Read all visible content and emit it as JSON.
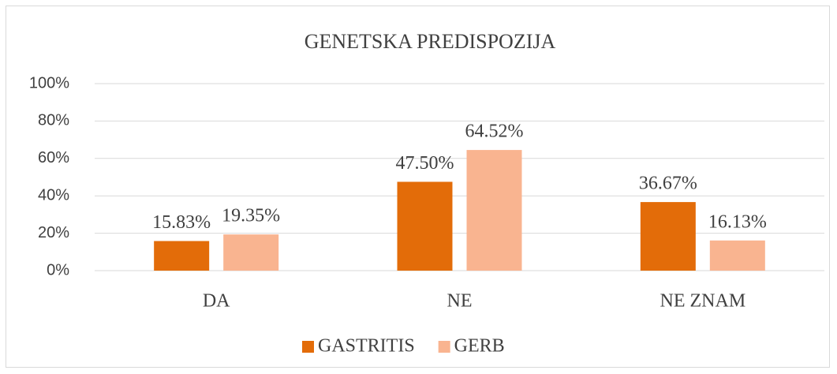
{
  "chart_data": {
    "type": "bar",
    "title": "GENETSKA PREDISPOZIJA",
    "categories": [
      "DA",
      "NE",
      "NE ZNAM"
    ],
    "series": [
      {
        "name": "GASTRITIS",
        "color": "#e36c09",
        "values": [
          15.83,
          47.5,
          36.67
        ],
        "value_labels": [
          "15.83%",
          "47.50%",
          "36.67%"
        ]
      },
      {
        "name": "GERB",
        "color": "#f9b490",
        "values": [
          19.35,
          64.52,
          16.13
        ],
        "value_labels": [
          "19.35%",
          "64.52%",
          "16.13%"
        ]
      }
    ],
    "ylim": [
      0,
      100
    ],
    "yticks": [
      {
        "value": 0,
        "label": "0%"
      },
      {
        "value": 20,
        "label": "20%"
      },
      {
        "value": 40,
        "label": "40%"
      },
      {
        "value": 60,
        "label": "60%"
      },
      {
        "value": 80,
        "label": "80%"
      },
      {
        "value": 100,
        "label": "100%"
      }
    ],
    "grid": true,
    "legend": "bottom"
  }
}
